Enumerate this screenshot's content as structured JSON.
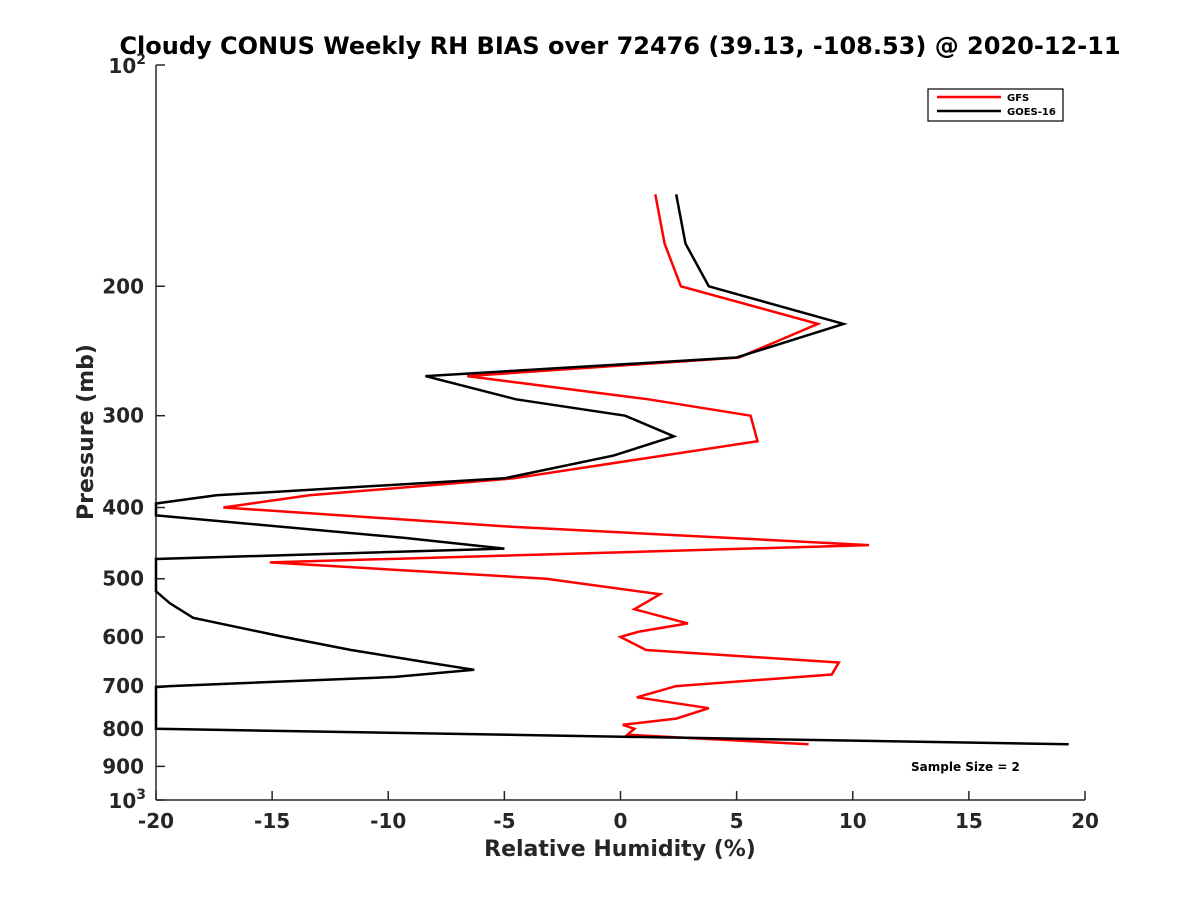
{
  "chart_data": {
    "type": "line",
    "title": "Cloudy CONUS Weekly RH BIAS over 72476 (39.13, -108.53) @ 2020-12-11",
    "xlabel": "Relative Humidity (%)",
    "ylabel": "Pressure (mb)",
    "xlim": [
      -20,
      20
    ],
    "ylim": [
      100,
      1000
    ],
    "y_scale": "log",
    "y_reversed": true,
    "grid": false,
    "legend_position": "top-right",
    "x_ticks": [
      -20,
      -15,
      -10,
      -5,
      0,
      5,
      10,
      15,
      20
    ],
    "x_tick_labels": [
      "-20",
      "-15",
      "-10",
      "-5",
      "0",
      "5",
      "10",
      "15",
      "20"
    ],
    "y_ticks": [
      200,
      300,
      400,
      500,
      600,
      700,
      800,
      900
    ],
    "y_tick_labels": [
      "200",
      "300",
      "400",
      "500",
      "600",
      "700",
      "800",
      "900"
    ],
    "y_decade_labels": [
      {
        "value": 100,
        "base": "10",
        "exp": "2"
      },
      {
        "value": 1000,
        "base": "10",
        "exp": "3"
      }
    ],
    "series": [
      {
        "name": "GFS",
        "color": "#ff0000",
        "points": [
          {
            "x": 1.5,
            "p": 150
          },
          {
            "x": 1.9,
            "p": 175
          },
          {
            "x": 2.6,
            "p": 200
          },
          {
            "x": 8.5,
            "p": 225
          },
          {
            "x": 5.1,
            "p": 250
          },
          {
            "x": -6.6,
            "p": 265
          },
          {
            "x": 1.2,
            "p": 285
          },
          {
            "x": 5.6,
            "p": 300
          },
          {
            "x": 5.9,
            "p": 325
          },
          {
            "x": -4.6,
            "p": 365
          },
          {
            "x": -13.4,
            "p": 385
          },
          {
            "x": -17.1,
            "p": 400
          },
          {
            "x": -4.6,
            "p": 425
          },
          {
            "x": 10.7,
            "p": 450
          },
          {
            "x": -15.1,
            "p": 475
          },
          {
            "x": -3.2,
            "p": 500
          },
          {
            "x": 1.7,
            "p": 525
          },
          {
            "x": 0.6,
            "p": 550
          },
          {
            "x": 2.9,
            "p": 575
          },
          {
            "x": 0.8,
            "p": 590
          },
          {
            "x": 0.0,
            "p": 600
          },
          {
            "x": 1.1,
            "p": 625
          },
          {
            "x": 9.4,
            "p": 650
          },
          {
            "x": 9.1,
            "p": 675
          },
          {
            "x": 2.4,
            "p": 700
          },
          {
            "x": 0.7,
            "p": 725
          },
          {
            "x": 3.8,
            "p": 750
          },
          {
            "x": 2.4,
            "p": 775
          },
          {
            "x": 0.1,
            "p": 790
          },
          {
            "x": 0.6,
            "p": 800
          },
          {
            "x": 0.3,
            "p": 815
          },
          {
            "x": 8.1,
            "p": 840
          }
        ]
      },
      {
        "name": "GOES-16",
        "color": "#000000",
        "points": [
          {
            "x": 2.4,
            "p": 150
          },
          {
            "x": 2.8,
            "p": 175
          },
          {
            "x": 3.8,
            "p": 200
          },
          {
            "x": 9.6,
            "p": 225
          },
          {
            "x": 5.0,
            "p": 250
          },
          {
            "x": -8.4,
            "p": 265
          },
          {
            "x": -4.5,
            "p": 285
          },
          {
            "x": 0.2,
            "p": 300
          },
          {
            "x": 2.3,
            "p": 320
          },
          {
            "x": -0.3,
            "p": 340
          },
          {
            "x": -5.0,
            "p": 365
          },
          {
            "x": -17.4,
            "p": 385
          },
          {
            "x": -20.0,
            "p": 395
          },
          {
            "x": -20.0,
            "p": 410
          },
          {
            "x": -9.3,
            "p": 440
          },
          {
            "x": -5.0,
            "p": 455
          },
          {
            "x": -20.0,
            "p": 470
          },
          {
            "x": -20.0,
            "p": 520
          },
          {
            "x": -19.4,
            "p": 540
          },
          {
            "x": -18.4,
            "p": 565
          },
          {
            "x": -14.5,
            "p": 600
          },
          {
            "x": -11.6,
            "p": 625
          },
          {
            "x": -8.3,
            "p": 650
          },
          {
            "x": -6.3,
            "p": 665
          },
          {
            "x": -9.7,
            "p": 680
          },
          {
            "x": -19.4,
            "p": 700
          },
          {
            "x": -20.0,
            "p": 702
          },
          {
            "x": -20.0,
            "p": 800
          },
          {
            "x": 19.3,
            "p": 840
          }
        ]
      }
    ],
    "annotation": "Sample Size = 2"
  }
}
